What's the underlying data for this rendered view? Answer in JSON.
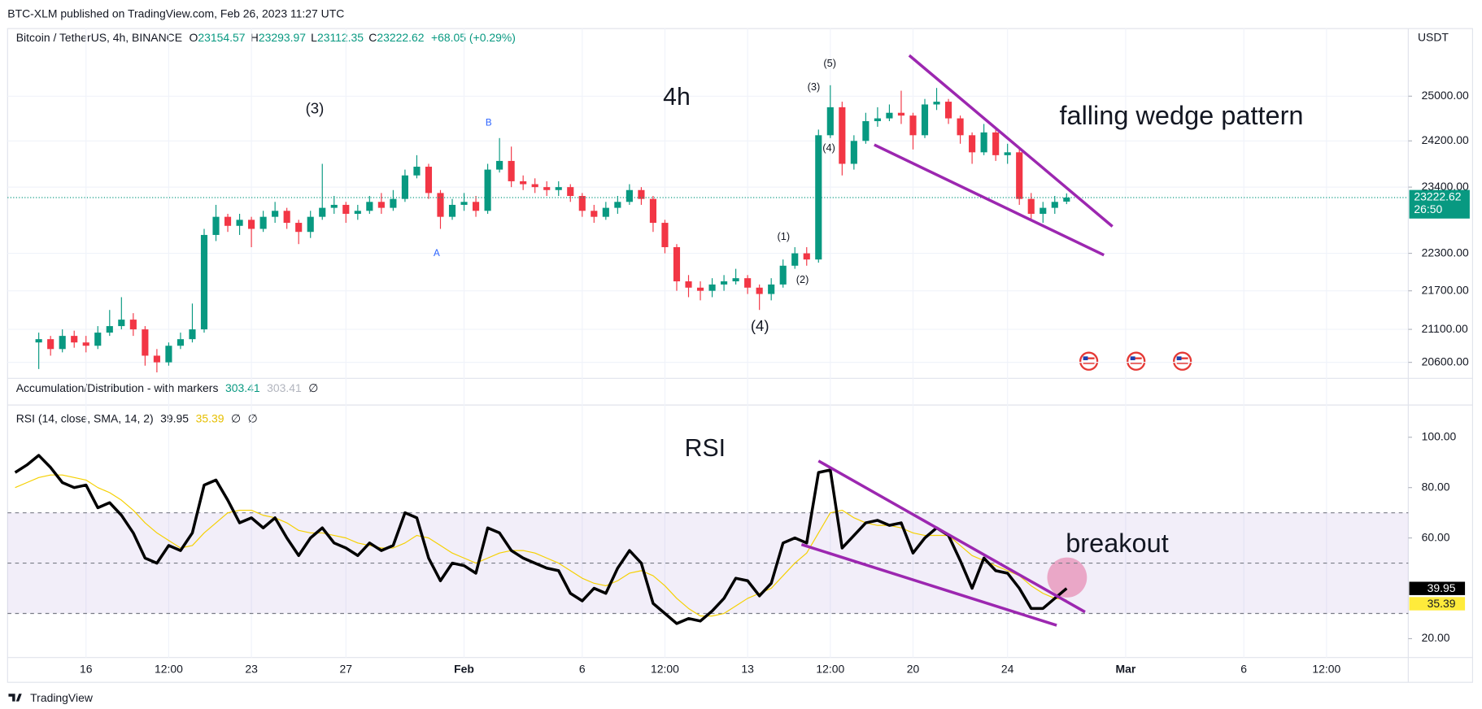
{
  "page": {
    "published": "BTC-XLM published on TradingView.com, Feb 26, 2023 11:27 UTC",
    "footer": "TradingView"
  },
  "chart_data": [
    {
      "type": "candlestick",
      "symbol": "Bitcoin / TetherUS, 4h, BINANCE",
      "ohlc_labels": [
        "O",
        "H",
        "L",
        "C"
      ],
      "ohlc_values": [
        23154.57,
        23293.97,
        23112.35,
        23222.62
      ],
      "change": "+68.05 (+0.29%)",
      "currency": "USDT",
      "countdown": "26:50",
      "colors": {
        "up": "#089981",
        "down": "#f23645"
      },
      "log_scale": true,
      "grid": true,
      "ylim": [
        20390,
        26260
      ],
      "yticks": [
        {
          "value": 20600,
          "label": "20600.00"
        },
        {
          "value": 21100,
          "label": "21100.00"
        },
        {
          "value": 21700,
          "label": "21700.00"
        },
        {
          "value": 22300,
          "label": "22300.00"
        },
        {
          "value": 23400,
          "label": "23400.00"
        },
        {
          "value": 24200,
          "label": "24200.00"
        },
        {
          "value": 25000,
          "label": "25000.00"
        }
      ],
      "xlim": [
        12.68,
        71.96
      ],
      "xticks": [
        16,
        {
          "value": 19.5,
          "label": "12:00"
        },
        23,
        27,
        {
          "value": 32,
          "label": "Feb"
        },
        {
          "value": 37,
          "label": "6"
        },
        {
          "value": 40.5,
          "label": "12:00"
        },
        {
          "value": 44,
          "label": "13"
        },
        {
          "value": 47.5,
          "label": "12:00"
        },
        {
          "value": 51,
          "label": "20"
        },
        {
          "value": 55,
          "label": "24"
        },
        {
          "value": 60,
          "label": "Mar"
        },
        {
          "value": 65,
          "label": "6"
        },
        {
          "value": 68.5,
          "label": "12:00"
        }
      ],
      "x": [
        14,
        14.5,
        15,
        15.5,
        16,
        16.5,
        17,
        17.5,
        18,
        18.5,
        19,
        19.5,
        20,
        20.5,
        21,
        21.5,
        22,
        22.5,
        23,
        23.5,
        24,
        24.5,
        25,
        25.5,
        26,
        26.5,
        27,
        27.5,
        28,
        28.5,
        29,
        29.5,
        30,
        30.5,
        31,
        31.5,
        32,
        32.5,
        33,
        33.5,
        34,
        34.5,
        35,
        35.5,
        36,
        36.5,
        37,
        37.5,
        38,
        38.5,
        39,
        39.5,
        40,
        40.5,
        41,
        41.5,
        42,
        42.5,
        43,
        43.5,
        44,
        44.5,
        45,
        45.5,
        46,
        46.5,
        47,
        47.5,
        48,
        48.5,
        49,
        49.5,
        50,
        50.5,
        51,
        51.5,
        52,
        52.5,
        53,
        53.5,
        54,
        54.5,
        55,
        55.5,
        56,
        56.5,
        57,
        57.5
      ],
      "open": [
        20900,
        20950,
        20800,
        21000,
        20900,
        20850,
        21050,
        21150,
        21250,
        21100,
        20700,
        20600,
        20850,
        20950,
        21100,
        22600,
        22900,
        22750,
        22850,
        22700,
        22900,
        23000,
        22800,
        22650,
        22900,
        23050,
        23100,
        22950,
        23000,
        23150,
        23050,
        23200,
        23600,
        23750,
        23300,
        22900,
        23100,
        23150,
        23000,
        23700,
        23850,
        23500,
        23450,
        23400,
        23350,
        23400,
        23250,
        23000,
        22900,
        23050,
        23150,
        23350,
        23200,
        22800,
        22400,
        21850,
        21750,
        21700,
        21800,
        21850,
        21900,
        21750,
        21650,
        21800,
        22100,
        22300,
        22200,
        24300,
        24800,
        23800,
        24200,
        24550,
        24600,
        24700,
        24650,
        24300,
        24850,
        24900,
        24600,
        24300,
        24000,
        24350,
        23950,
        24000,
        23200,
        22950,
        23050,
        23154.57
      ],
      "high": [
        21050,
        21000,
        21100,
        21080,
        21000,
        21150,
        21400,
        21600,
        21350,
        21150,
        20800,
        20900,
        21050,
        21500,
        22700,
        23100,
        22950,
        22950,
        22900,
        23000,
        23150,
        23050,
        22850,
        23000,
        23800,
        23250,
        23150,
        23100,
        23250,
        23300,
        23350,
        23700,
        23950,
        23800,
        23350,
        23200,
        23300,
        23250,
        23800,
        24250,
        24100,
        23600,
        23550,
        23500,
        23500,
        23450,
        23300,
        23100,
        23150,
        23250,
        23450,
        23400,
        23250,
        22850,
        22450,
        21950,
        21850,
        21900,
        21950,
        22050,
        21950,
        21800,
        21900,
        22200,
        22400,
        22400,
        24400,
        25200,
        24900,
        24300,
        24700,
        24800,
        24850,
        25100,
        24700,
        24950,
        25150,
        24950,
        24650,
        24350,
        24500,
        24400,
        24150,
        24050,
        23300,
        23150,
        23250,
        23293.97
      ],
      "low": [
        20500,
        20700,
        20750,
        20820,
        20750,
        20800,
        21000,
        21100,
        21000,
        20550,
        20450,
        20550,
        20800,
        20900,
        21050,
        22500,
        22650,
        22600,
        22400,
        22650,
        22800,
        22700,
        22450,
        22550,
        22850,
        22950,
        22800,
        22850,
        22950,
        22950,
        23000,
        23150,
        23550,
        23200,
        22700,
        22850,
        23000,
        22900,
        22950,
        23650,
        23400,
        23350,
        23300,
        23250,
        23250,
        23150,
        22900,
        22800,
        22850,
        22950,
        23100,
        23100,
        22650,
        22300,
        21700,
        21600,
        21550,
        21600,
        21700,
        21800,
        21650,
        21400,
        21550,
        21750,
        22050,
        22100,
        22150,
        24250,
        23600,
        23700,
        24150,
        24450,
        24550,
        24500,
        24050,
        24250,
        24750,
        24500,
        24150,
        23800,
        23950,
        23850,
        23800,
        23100,
        22850,
        22800,
        22950,
        23112.35
      ],
      "close": [
        20950,
        20800,
        21000,
        20900,
        20850,
        21050,
        21150,
        21250,
        21100,
        20700,
        20600,
        20850,
        20950,
        21100,
        22600,
        22900,
        22750,
        22850,
        22700,
        22900,
        23000,
        22800,
        22650,
        22900,
        23050,
        23100,
        22950,
        23000,
        23150,
        23050,
        23200,
        23600,
        23750,
        23300,
        22900,
        23100,
        23150,
        23000,
        23700,
        23850,
        23500,
        23450,
        23400,
        23350,
        23400,
        23250,
        23000,
        22900,
        23050,
        23150,
        23350,
        23200,
        22800,
        22400,
        21850,
        21750,
        21700,
        21800,
        21850,
        21900,
        21750,
        21650,
        21800,
        22100,
        22300,
        22200,
        24300,
        24800,
        23800,
        24200,
        24550,
        24600,
        24700,
        24650,
        24300,
        24850,
        24900,
        24600,
        24300,
        24000,
        24350,
        23950,
        24000,
        23200,
        22950,
        23050,
        23150,
        23222.62
      ],
      "annotations": [
        "(3)",
        "4h",
        "B",
        "A",
        "(1)",
        "(2)",
        "(4)",
        "(3)",
        "(5)",
        "(4)",
        "falling wedge pattern"
      ],
      "trendline_color": "#9c27b0",
      "trendlines": [
        {
          "x": [
            50.84,
            59.44
          ],
          "values": [
            25753,
            22740
          ]
        },
        {
          "x": [
            49.36,
            59.08
          ],
          "values": [
            24132,
            22272
          ]
        }
      ]
    },
    {
      "type": "indicator",
      "title": "Accumulation/Distribution - with markers",
      "values": [
        303.41,
        303.41
      ],
      "colors": [
        "#089981",
        "#b2b5be"
      ],
      "na": "∅"
    },
    {
      "type": "line",
      "title": "RSI (14, close, SMA, 14, 2)",
      "na": [
        "∅",
        "∅"
      ],
      "xlim": [
        12.68,
        71.96
      ],
      "ylim": [
        12.5,
        112.8
      ],
      "yticks": [
        {
          "value": 20,
          "label": "20.00"
        },
        {
          "value": 60,
          "label": "60.00"
        },
        {
          "value": 80,
          "label": "80.00"
        },
        {
          "value": 100,
          "label": "100.00"
        }
      ],
      "band": [
        30,
        70
      ],
      "band_color": "#7e57c2",
      "midline": 50,
      "x": [
        13,
        13.5,
        14,
        14.5,
        15,
        15.5,
        16,
        16.5,
        17,
        17.5,
        18,
        18.5,
        19,
        19.5,
        20,
        20.5,
        21,
        21.5,
        22,
        22.5,
        23,
        23.5,
        24,
        24.5,
        25,
        25.5,
        26,
        26.5,
        27,
        27.5,
        28,
        28.5,
        29,
        29.5,
        30,
        30.5,
        31,
        31.5,
        32,
        32.5,
        33,
        33.5,
        34,
        34.5,
        35,
        35.5,
        36,
        36.5,
        37,
        37.5,
        38,
        38.5,
        39,
        39.5,
        40,
        40.5,
        41,
        41.5,
        42,
        42.5,
        43,
        43.5,
        44,
        44.5,
        45,
        45.5,
        46,
        46.5,
        47,
        47.5,
        48,
        48.5,
        49,
        49.5,
        50,
        50.5,
        51,
        51.5,
        52,
        52.5,
        53,
        53.5,
        54,
        54.5,
        55,
        55.5,
        56,
        56.5,
        57,
        57.5
      ],
      "series": [
        {
          "color": "#000000",
          "values": [
            86,
            89,
            92.8,
            88,
            82,
            80,
            81,
            72,
            74,
            69,
            62,
            52,
            50,
            57,
            55,
            62,
            81,
            83,
            75,
            66,
            68,
            64,
            68,
            60,
            53,
            60,
            64,
            58,
            56,
            53,
            58,
            55,
            57,
            70,
            68,
            52,
            43,
            50,
            49,
            46,
            64,
            62,
            55,
            52,
            50,
            48,
            47,
            38,
            35,
            40,
            38,
            48,
            55,
            50,
            34,
            30,
            26,
            28,
            27,
            31,
            36,
            44,
            43,
            37,
            42,
            58,
            60,
            58,
            86,
            87,
            56,
            61,
            66,
            67,
            65,
            66,
            54,
            60,
            64,
            61,
            51,
            40,
            52,
            47,
            46,
            40,
            32,
            32,
            36,
            39.95
          ]
        },
        {
          "color": "#f5d000",
          "values": [
            80,
            82,
            84,
            85,
            85,
            84,
            83,
            80,
            78,
            75,
            71,
            66,
            62,
            59,
            56,
            57,
            62,
            66,
            70,
            71,
            71,
            69,
            68,
            66,
            63,
            62,
            62,
            61,
            60,
            58,
            57,
            56,
            56,
            58,
            61,
            60,
            57,
            54,
            52,
            50,
            52,
            54,
            55,
            55,
            54,
            52,
            50,
            47,
            44,
            42,
            41,
            43,
            46,
            47,
            45,
            41,
            36,
            32,
            29,
            29,
            30,
            33,
            36,
            38,
            40,
            45,
            50,
            54,
            62,
            70,
            71,
            68,
            66,
            65,
            65,
            64,
            62,
            61,
            61,
            61,
            57,
            53,
            51,
            49,
            47,
            45,
            41,
            38,
            36,
            35.39
          ]
        }
      ],
      "annotations": [
        "RSI",
        "breakout"
      ],
      "trendline_color": "#9c27b0",
      "trendlines": [
        {
          "x": [
            47.0,
            58.28
          ],
          "values": [
            90.6,
            30.6
          ]
        },
        {
          "x": [
            46.28,
            57.08
          ],
          "values": [
            57.4,
            25.3
          ]
        }
      ]
    }
  ]
}
